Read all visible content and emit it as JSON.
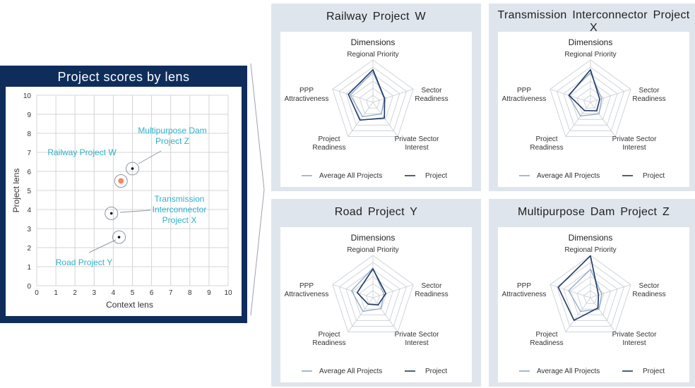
{
  "left": {
    "title": "Project scores by lens",
    "chart_data": {
      "type": "scatter",
      "xlabel": "Context lens",
      "ylabel": "Project lens",
      "xlim": [
        0,
        10
      ],
      "ylim": [
        0,
        10
      ],
      "xticks": [
        "0",
        "1",
        "2",
        "3",
        "4",
        "5",
        "6",
        "7",
        "8",
        "9",
        "10"
      ],
      "yticks": [
        "0",
        "1",
        "2",
        "3",
        "4",
        "5",
        "6",
        "7",
        "8",
        "9",
        "10"
      ],
      "grid": true,
      "points": [
        {
          "label": "Multipurpose Dam Project Z",
          "label_lines": [
            "Multipurpose Dam",
            "Project Z"
          ],
          "x": 5.0,
          "y": 6.15,
          "highlight": false
        },
        {
          "label": "Railway Project W",
          "label_lines": [
            "Railway Project W"
          ],
          "x": 4.4,
          "y": 5.5,
          "highlight": true
        },
        {
          "label": "Transmission Interconnector Project X",
          "label_lines": [
            "Transmission",
            "Interconnector",
            "Project X"
          ],
          "x": 3.9,
          "y": 3.8,
          "highlight": false
        },
        {
          "label": "Road Project Y",
          "label_lines": [
            "Road Project Y"
          ],
          "x": 4.3,
          "y": 2.55,
          "highlight": false
        }
      ]
    }
  },
  "cards": [
    {
      "title": "Railway Project W",
      "chart_data": {
        "type": "radar",
        "title": "Dimensions",
        "axes": [
          "Regional Priority",
          "Sector Readiness",
          "Private Sector Interest",
          "Project Readiness",
          "PPP Attractiveness"
        ],
        "rmax": 10,
        "rings": 6,
        "series": [
          {
            "name": "Average All Projects",
            "values": [
              7.2,
              2.8,
              3.4,
              4.2,
              5.6
            ]
          },
          {
            "name": "Project",
            "values": [
              7.7,
              2.9,
              4.6,
              5.2,
              6.1
            ]
          }
        ]
      }
    },
    {
      "title": "Transmission Interconnector Project X",
      "chart_data": {
        "type": "radar",
        "title": "Dimensions",
        "axes": [
          "Regional Priority",
          "Sector Readiness",
          "Private Sector Interest",
          "Project Readiness",
          "PPP Attractiveness"
        ],
        "rmax": 10,
        "rings": 6,
        "series": [
          {
            "name": "Average All Projects",
            "values": [
              7.0,
              2.8,
              3.4,
              4.0,
              5.5
            ]
          },
          {
            "name": "Project",
            "values": [
              7.7,
              2.3,
              2.5,
              2.4,
              5.3
            ]
          }
        ]
      }
    },
    {
      "title": "Road Project Y",
      "chart_data": {
        "type": "radar",
        "title": "Dimensions",
        "axes": [
          "Regional Priority",
          "Sector Readiness",
          "Private Sector Interest",
          "Project Readiness",
          "PPP Attractiveness"
        ],
        "rmax": 10,
        "rings": 6,
        "series": [
          {
            "name": "Average All Projects",
            "values": [
              7.0,
              2.7,
              3.2,
              4.0,
              5.3
            ]
          },
          {
            "name": "Project",
            "values": [
              6.8,
              3.2,
              2.1,
              1.9,
              3.9
            ]
          }
        ]
      }
    },
    {
      "title": "Multipurpose Dam Project Z",
      "chart_data": {
        "type": "radar",
        "title": "Dimensions",
        "axes": [
          "Regional Priority",
          "Sector Readiness",
          "Private Sector Interest",
          "Project Readiness",
          "PPP Attractiveness"
        ],
        "rmax": 10,
        "rings": 6,
        "series": [
          {
            "name": "Average All Projects",
            "values": [
              6.7,
              2.8,
              3.4,
              4.0,
              5.4
            ]
          },
          {
            "name": "Project",
            "values": [
              9.9,
              2.0,
              3.0,
              6.6,
              8.0
            ]
          }
        ]
      }
    }
  ],
  "colors": {
    "navy": "#0f2d5b",
    "project": "#1f3864",
    "average": "#8ea9c4",
    "accent_text": "#2eb1c9",
    "highlight": "#f4876a",
    "grid": "#d4d4d4",
    "radar_grid": "#d0d4da",
    "card_bg": "#dfe5ec"
  }
}
